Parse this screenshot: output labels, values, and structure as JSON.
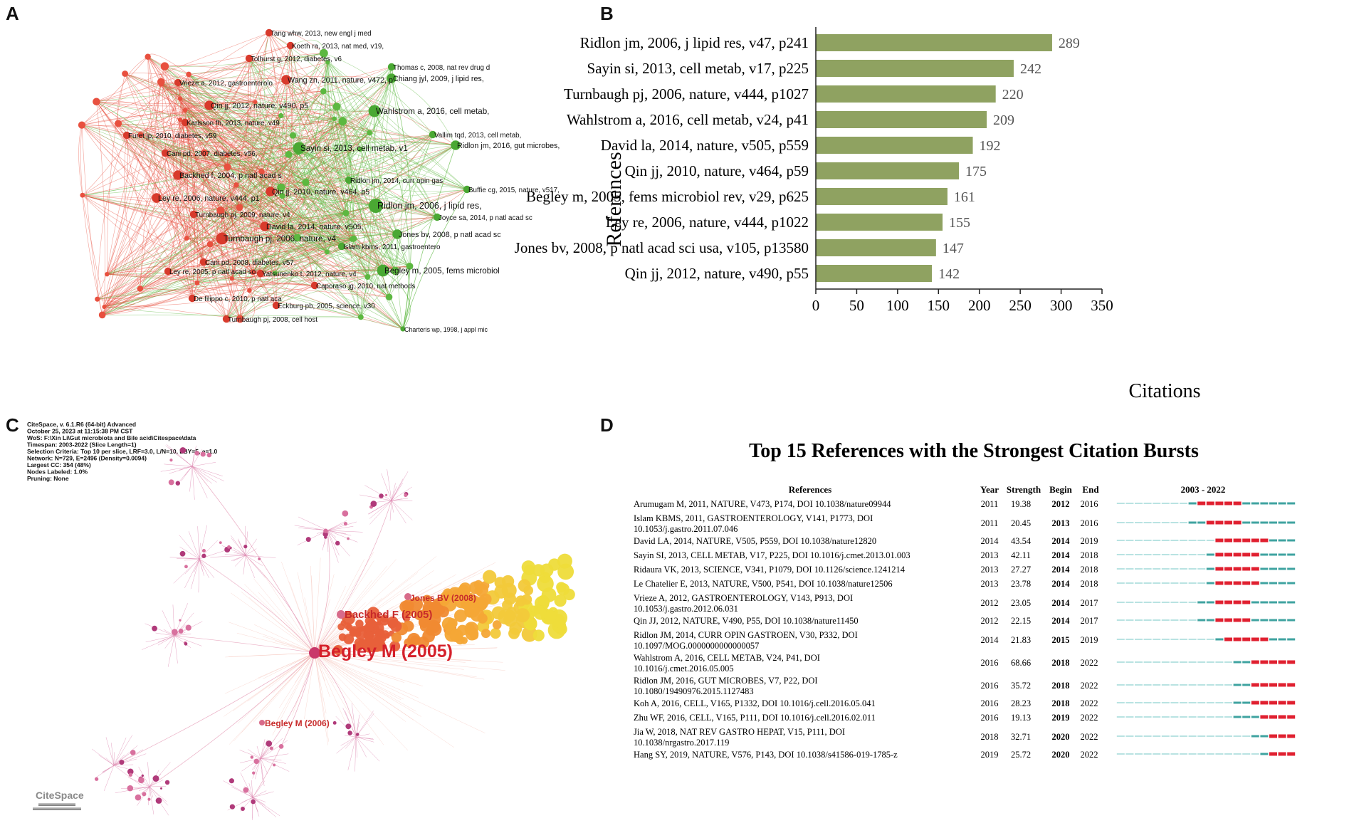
{
  "panels": {
    "a": "A",
    "b": "B",
    "c": "C",
    "d": "D"
  },
  "colors": {
    "bar": "#8fa261",
    "net_red": "#e8503f",
    "net_green": "#5cb840",
    "burst_red": "#e02030",
    "burst_teal": "#3fa3a0",
    "burst_light": "#b9e3e2"
  },
  "network_a": {
    "nodes": [
      {
        "label": "Tang whw, 2013, new engl j med",
        "cluster": "red",
        "size": 2
      },
      {
        "label": "Koeth ra, 2013, nat med, v19,",
        "cluster": "red",
        "size": 2
      },
      {
        "label": "Tolhurst g, 2012, diabetes, v6",
        "cluster": "red",
        "size": 2
      },
      {
        "label": "Thomas c, 2008, nat rev drug d",
        "cluster": "green",
        "size": 2
      },
      {
        "label": "Chiang jyl, 2009, j lipid res,",
        "cluster": "green",
        "size": 3
      },
      {
        "label": "Vrieze a, 2012, gastroenterolo",
        "cluster": "red",
        "size": 2
      },
      {
        "label": "Wang zn, 2011, nature, v472, p",
        "cluster": "red",
        "size": 3
      },
      {
        "label": "Qin jj, 2012, nature, v490, p5",
        "cluster": "red",
        "size": 3
      },
      {
        "label": "Wahlstrom a, 2016, cell metab,",
        "cluster": "green",
        "size": 4
      },
      {
        "label": "Karlsson fh, 2013, nature, v49",
        "cluster": "red",
        "size": 2
      },
      {
        "label": "Furet jp, 2010, diabetes, v59",
        "cluster": "red",
        "size": 2
      },
      {
        "label": "Vallim tqd, 2013, cell metab,",
        "cluster": "green",
        "size": 2
      },
      {
        "label": "Ridlon jm, 2016, gut microbes,",
        "cluster": "green",
        "size": 3
      },
      {
        "label": "Cani pd, 2007, diabetes, v56,",
        "cluster": "red",
        "size": 2
      },
      {
        "label": "Sayin si, 2013, cell metab, v1",
        "cluster": "green",
        "size": 4
      },
      {
        "label": "Backhed f, 2004, p natl acad s",
        "cluster": "red",
        "size": 3
      },
      {
        "label": "Ridlon jm, 2014, curr opin gas",
        "cluster": "green",
        "size": 2
      },
      {
        "label": "Buffie cg, 2015, nature, v517,",
        "cluster": "green",
        "size": 2
      },
      {
        "label": "Qin jj, 2010, nature, v464, p5",
        "cluster": "red",
        "size": 3
      },
      {
        "label": "Ley re, 2006, nature, v444, p1",
        "cluster": "red",
        "size": 3
      },
      {
        "label": "Ridlon jm, 2006, j lipid res,",
        "cluster": "green",
        "size": 5
      },
      {
        "label": "Turnbaugh pj, 2009, nature, v4",
        "cluster": "red",
        "size": 2
      },
      {
        "label": "Joyce sa, 2014, p natl acad sc",
        "cluster": "green",
        "size": 2
      },
      {
        "label": "David la, 2014, nature, v505,",
        "cluster": "red",
        "size": 3
      },
      {
        "label": "Jones bv, 2008, p natl acad sc",
        "cluster": "green",
        "size": 3
      },
      {
        "label": "Turnbaugh pj, 2006, nature, v4",
        "cluster": "red",
        "size": 4
      },
      {
        "label": "Islam kbms, 2011, gastroentero",
        "cluster": "green",
        "size": 2
      },
      {
        "label": "Cani pd, 2008, diabetes, v57,",
        "cluster": "red",
        "size": 2
      },
      {
        "label": "Ley re, 2005, p natl acad sci",
        "cluster": "red",
        "size": 2
      },
      {
        "label": "Yatsunenko t, 2012, nature, v4",
        "cluster": "red",
        "size": 2
      },
      {
        "label": "Begley m, 2005, fems microbiol",
        "cluster": "green",
        "size": 4
      },
      {
        "label": "Caporaso jg, 2010, nat methods",
        "cluster": "red",
        "size": 2
      },
      {
        "label": "De filippo c, 2010, p natl aca",
        "cluster": "red",
        "size": 2
      },
      {
        "label": "Eckburg pb, 2005, science, v30",
        "cluster": "red",
        "size": 2
      },
      {
        "label": "Turnbaugh pj, 2008, cell host",
        "cluster": "red",
        "size": 2
      },
      {
        "label": "Charteris wp, 1998, j appl mic",
        "cluster": "green",
        "size": 1
      }
    ]
  },
  "chart_data": {
    "type": "bar",
    "orientation": "horizontal",
    "categories": [
      "Ridlon jm, 2006, j lipid res, v47, p241",
      "Sayin si, 2013, cell metab, v17, p225",
      "Turnbaugh pj, 2006, nature, v444, p1027",
      "Wahlstrom a, 2016, cell metab, v24, p41",
      "David la, 2014, nature, v505, p559",
      "Qin jj, 2010, nature, v464, p59",
      "Begley m, 2005, fems microbiol rev, v29, p625",
      "Ley re, 2006, nature, v444, p1022",
      "Jones bv, 2008, p natl acad sci usa, v105, p13580",
      "Qin jj, 2012, nature, v490, p55"
    ],
    "values": [
      289,
      242,
      220,
      209,
      192,
      175,
      161,
      155,
      147,
      142
    ],
    "value_labels": [
      "289",
      "242",
      "220",
      "209",
      "192",
      "175",
      "161",
      "155",
      "147",
      "142"
    ],
    "xlabel": "Citations",
    "ylabel": "References",
    "xlim": [
      0,
      350
    ],
    "xticks": [
      0,
      50,
      100,
      150,
      200,
      250,
      300,
      350
    ],
    "xtick_labels": [
      "0",
      "50",
      "100",
      "150",
      "200",
      "250",
      "300",
      "350"
    ],
    "grid": false
  },
  "citespace_c": {
    "info_lines": [
      "CiteSpace, v. 6.1.R6 (64-bit) Advanced",
      "October 25, 2023 at 11:15:38 PM CST",
      "WoS: F:\\Xin Li\\Gut microbiota and Bile acid\\Citespace\\data",
      "Timespan: 2003-2022 (Slice Length=1)",
      "Selection Criteria: Top 10 per slice, LRF=3.0, L/N=10, LBY=5, e=1.0",
      "Network: N=729, E=2496 (Density=0.0094)",
      "Largest CC: 354 (48%)",
      "Nodes Labeled: 1.0%",
      "Pruning: None"
    ],
    "labels": {
      "begley_2005": "Begley M (2005)",
      "backhed_2005": "Backhed F (2005)",
      "jones_2008": "Jones BV (2008)",
      "begley_2006": "Begley M (2006)"
    },
    "logo": "CiteSpace"
  },
  "bursts_d": {
    "title": "Top 15 References with the Strongest Citation Bursts",
    "headers": {
      "references": "References",
      "year": "Year",
      "strength": "Strength",
      "begin": "Begin",
      "end": "End",
      "range": "2003 - 2022"
    },
    "range_start": 2003,
    "range_end": 2022,
    "rows": [
      {
        "ref": [
          "Arumugam M, 2011, NATURE, V473, P174, DOI 10.1038/nature09944"
        ],
        "year": "2011",
        "strength": "19.38",
        "begin": "2012",
        "end": "2016"
      },
      {
        "ref": [
          "Islam KBMS, 2011, GASTROENTEROLOGY, V141, P1773, DOI",
          "10.1053/j.gastro.2011.07.046"
        ],
        "year": "2011",
        "strength": "20.45",
        "begin": "2013",
        "end": "2016"
      },
      {
        "ref": [
          "David LA, 2014, NATURE, V505, P559, DOI 10.1038/nature12820"
        ],
        "year": "2014",
        "strength": "43.54",
        "begin": "2014",
        "end": "2019"
      },
      {
        "ref": [
          "Sayin SI, 2013, CELL METAB, V17, P225, DOI 10.1016/j.cmet.2013.01.003"
        ],
        "year": "2013",
        "strength": "42.11",
        "begin": "2014",
        "end": "2018"
      },
      {
        "ref": [
          "Ridaura VK, 2013, SCIENCE, V341, P1079, DOI 10.1126/science.1241214"
        ],
        "year": "2013",
        "strength": "27.27",
        "begin": "2014",
        "end": "2018"
      },
      {
        "ref": [
          "Le Chatelier E, 2013, NATURE, V500, P541, DOI 10.1038/nature12506"
        ],
        "year": "2013",
        "strength": "23.78",
        "begin": "2014",
        "end": "2018"
      },
      {
        "ref": [
          "Vrieze A, 2012, GASTROENTEROLOGY, V143, P913, DOI",
          "10.1053/j.gastro.2012.06.031"
        ],
        "year": "2012",
        "strength": "23.05",
        "begin": "2014",
        "end": "2017"
      },
      {
        "ref": [
          "Qin JJ, 2012, NATURE, V490, P55, DOI 10.1038/nature11450"
        ],
        "year": "2012",
        "strength": "22.15",
        "begin": "2014",
        "end": "2017"
      },
      {
        "ref": [
          "Ridlon JM, 2014, CURR OPIN GASTROEN, V30, P332, DOI",
          "10.1097/MOG.0000000000000057"
        ],
        "year": "2014",
        "strength": "21.83",
        "begin": "2015",
        "end": "2019"
      },
      {
        "ref": [
          "Wahlstrom A, 2016, CELL METAB, V24, P41, DOI",
          "10.1016/j.cmet.2016.05.005"
        ],
        "year": "2016",
        "strength": "68.66",
        "begin": "2018",
        "end": "2022"
      },
      {
        "ref": [
          "Ridlon JM, 2016, GUT MICROBES, V7, P22, DOI",
          "10.1080/19490976.2015.1127483"
        ],
        "year": "2016",
        "strength": "35.72",
        "begin": "2018",
        "end": "2022"
      },
      {
        "ref": [
          "Koh A, 2016, CELL, V165, P1332, DOI 10.1016/j.cell.2016.05.041"
        ],
        "year": "2016",
        "strength": "28.23",
        "begin": "2018",
        "end": "2022"
      },
      {
        "ref": [
          "Zhu WF, 2016, CELL, V165, P111, DOI 10.1016/j.cell.2016.02.011"
        ],
        "year": "2016",
        "strength": "19.13",
        "begin": "2019",
        "end": "2022"
      },
      {
        "ref": [
          "Jia W, 2018, NAT REV GASTRO HEPAT, V15, P111, DOI",
          "10.1038/nrgastro.2017.119"
        ],
        "year": "2018",
        "strength": "32.71",
        "begin": "2020",
        "end": "2022"
      },
      {
        "ref": [
          "Hang SY, 2019, NATURE, V576, P143, DOI 10.1038/s41586-019-1785-z"
        ],
        "year": "2019",
        "strength": "25.72",
        "begin": "2020",
        "end": "2022"
      }
    ]
  }
}
